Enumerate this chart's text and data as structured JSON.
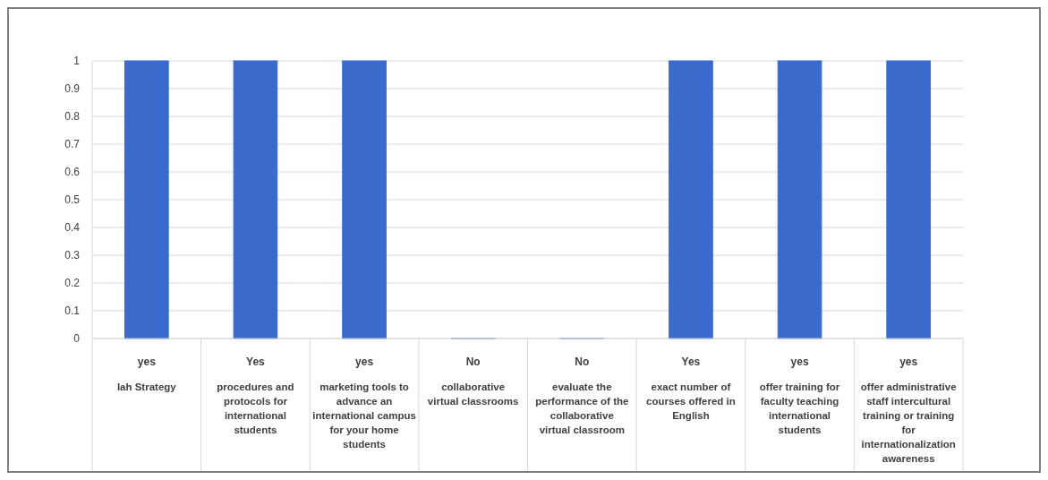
{
  "chart_data": {
    "type": "bar",
    "categories": [
      "Iah Strategy",
      "procedures and protocols for international students",
      "marketing tools to advance an international campus for your home students",
      "collaborative virtual classrooms",
      "evaluate the performance of the collaborative virtual classroom",
      "exact number of courses offered in English",
      "offer training for faculty teaching international students",
      "offer administrative staff intercultural training or training for internationalization awareness"
    ],
    "values": [
      1,
      1,
      1,
      0,
      0,
      1,
      1,
      1
    ],
    "value_labels": [
      "yes",
      "Yes",
      "yes",
      "No",
      "No",
      "Yes",
      "yes",
      "yes"
    ],
    "color": "#3a6acb",
    "ylim": [
      0,
      1
    ],
    "yticks": [
      0,
      0.1,
      0.2,
      0.3,
      0.4,
      0.5,
      0.6,
      0.7,
      0.8,
      0.9,
      1
    ],
    "grid": "y"
  }
}
